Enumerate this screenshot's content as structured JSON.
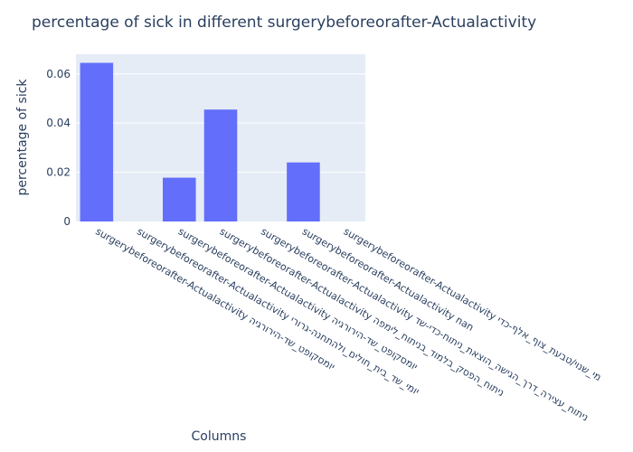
{
  "chart_data": {
    "type": "bar",
    "title": "percentage of sick in different surgerybeforeorafter-Actualactivity",
    "xlabel": "Columns",
    "ylabel": "percentage of sick",
    "ylim": [
      0,
      0.068
    ],
    "yticks": [
      0,
      0.02,
      0.04,
      0.06
    ],
    "ytick_labels": [
      "0",
      "0.02",
      "0.04",
      "0.06"
    ],
    "grid": true,
    "bar_color": "#636efa",
    "plot_bg": "#e5ecf6",
    "categories": [
      "surgerybeforeorafter-Actualactivity יומסקופט_שד-הירורגיה",
      "surgerybeforeorafter-Actualactivity יומי_שד_בית_חולים_ולהתחנה-גרורי",
      "surgerybeforeorafter-Actualactivity יומסקופט_שד-הירורגיה",
      "surgerybeforeorafter-Actualactivity ניתוח_הפסק_בלמוד_בניתוח_לימפה",
      "surgerybeforeorafter-Actualactivity ניתוח_עצירה_דרך_הגישה_הוצאת_ניתוח-כדי-שד",
      "surgerybeforeorafter-Actualactivity nan",
      "surgerybeforeorafter-Actualactivity מי_שנוי/טבעת_צוף_אלף-כדי"
    ],
    "values": [
      0.0645,
      0,
      0.0178,
      0.0455,
      0,
      0.024,
      0
    ]
  }
}
